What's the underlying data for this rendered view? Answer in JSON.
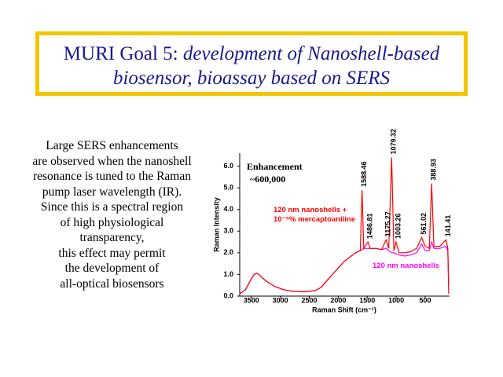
{
  "slide": {
    "title_lead": "MURI Goal 5:",
    "title_rest": "development of Nanoshell-based biosensor, bioassay based on SERS",
    "body_lines": [
      "Large SERS enhancements",
      "are observed when the nanoshell",
      "resonance is tuned to the Raman",
      "pump laser wavelength (IR).",
      "Since this is a spectral region",
      "of high physiological",
      "transparency,",
      "this effect may permit",
      "the development of",
      "all-optical biosensors"
    ]
  },
  "chart_data": {
    "type": "line",
    "x_label": "Raman Shift (cm⁻¹)",
    "y_label": "Raman Intensity",
    "annotations": [
      "Enhancement",
      "~600,000"
    ],
    "x": [
      3700,
      3600,
      3500,
      3450,
      3400,
      3350,
      3250,
      3100,
      2950,
      2800,
      2600,
      2400,
      2300,
      2200,
      2100,
      2000,
      1900,
      1800,
      1700,
      1620,
      1588.46,
      1560,
      1486.81,
      1450,
      1350,
      1250,
      1175.27,
      1130,
      1079.32,
      1040,
      1003.26,
      950,
      850,
      750,
      650,
      561.02,
      500,
      430,
      388.93,
      350,
      250,
      141.41,
      110,
      95
    ],
    "series": [
      {
        "name": "120 nm nanoshells",
        "color": "#ff00ff",
        "values": [
          0.1,
          0.3,
          0.8,
          1.0,
          1.05,
          0.95,
          0.7,
          0.45,
          0.3,
          0.22,
          0.2,
          0.25,
          0.4,
          0.7,
          1.0,
          1.3,
          1.6,
          1.8,
          2.0,
          2.1,
          2.15,
          2.2,
          2.2,
          2.2,
          2.2,
          2.15,
          2.2,
          2.1,
          2.0,
          2.0,
          1.95,
          1.9,
          1.85,
          1.9,
          2.0,
          2.4,
          2.1,
          2.1,
          2.5,
          2.2,
          2.2,
          2.3,
          2.1,
          0.5
        ]
      },
      {
        "name": "120 nm nanoshells + 10⁻⁵% mercaptoaniline",
        "color": "#ff0000",
        "values": [
          0.1,
          0.3,
          0.8,
          1.0,
          1.05,
          0.95,
          0.7,
          0.45,
          0.3,
          0.22,
          0.2,
          0.25,
          0.4,
          0.7,
          1.0,
          1.3,
          1.6,
          1.8,
          2.0,
          2.1,
          4.9,
          2.2,
          2.5,
          2.2,
          2.2,
          2.15,
          2.6,
          2.2,
          6.4,
          2.1,
          2.5,
          2.0,
          2.0,
          2.05,
          2.2,
          2.7,
          2.3,
          2.2,
          5.2,
          2.3,
          2.3,
          2.6,
          2.2,
          0.1
        ]
      }
    ],
    "peak_labels": [
      1588.46,
      1486.81,
      1175.27,
      1079.32,
      1003.26,
      561.02,
      388.93,
      141.41
    ],
    "xlim": [
      3700,
      80
    ],
    "xticks": [
      3500,
      3000,
      2500,
      2000,
      1500,
      1000,
      500
    ],
    "ylim": [
      0,
      6.6
    ],
    "yticks": [
      {
        "value": 0,
        "label": "0.0"
      },
      {
        "value": 1,
        "label": "1.0"
      },
      {
        "value": 2,
        "label": "2.0"
      },
      {
        "value": 3,
        "label": "3.0"
      },
      {
        "value": 4,
        "label": "4.0"
      },
      {
        "value": 5,
        "label": "5.0"
      },
      {
        "value": 6,
        "label": "6.0"
      }
    ]
  }
}
